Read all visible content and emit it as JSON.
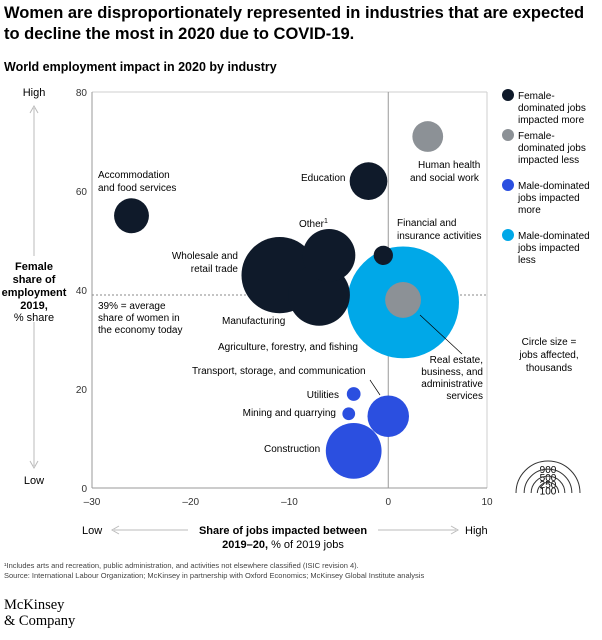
{
  "header": {
    "title": "Women are disproportionately represented in industries that are expected to decline the most in 2020 due to COVID-19.",
    "subtitle": "World employment impact in 2020 by industry"
  },
  "colors": {
    "female_more": "#0f1a2a",
    "female_less": "#8c9196",
    "male_more": "#2b4fe0",
    "male_less": "#00a8e8",
    "axis": "#999999",
    "text": "#000000"
  },
  "axes": {
    "y_low": "High",
    "y_bottom": "Low",
    "y_label_bold_1": "Female",
    "y_label_bold_2": "share of",
    "y_label_bold_3": "employment",
    "y_label_bold_4": "2019,",
    "y_label_unit": "% share",
    "x_low": "Low",
    "x_high": "High",
    "x_label_bold_1": "Share of jobs impacted between",
    "x_label_bold_2": "2019–20,",
    "x_label_unit": "% of 2019 jobs",
    "average_line_1": "39% = average",
    "average_line_2": "share of women in",
    "average_line_3": "the economy today"
  },
  "legend": {
    "items": [
      {
        "line1": "Female-",
        "line2": "dominated jobs",
        "line3": "impacted more",
        "color": "#0f1a2a"
      },
      {
        "line1": "Female-",
        "line2": "dominated jobs",
        "line3": "impacted less",
        "color": "#8c9196"
      },
      {
        "line1": "Male-dominated",
        "line2": "jobs impacted",
        "line3": "more",
        "color": "#2b4fe0"
      },
      {
        "line1": "Male-dominated",
        "line2": "jobs impacted",
        "line3": "less",
        "color": "#00a8e8"
      }
    ],
    "size_title_1": "Circle size =",
    "size_title_2": "jobs affected,",
    "size_title_3": "thousands",
    "size_values": [
      "900",
      "500",
      "250",
      "100"
    ]
  },
  "chart_data": {
    "type": "scatter",
    "xlim": [
      -30,
      10
    ],
    "ylim": [
      0,
      80
    ],
    "x_ticks": [
      "–30",
      "–20",
      "–10",
      "0",
      "10"
    ],
    "x_tick_values": [
      -30,
      -20,
      -10,
      0,
      10
    ],
    "y_ticks": [
      "0",
      "20",
      "40",
      "60",
      "80"
    ],
    "y_tick_values": [
      0,
      20,
      40,
      60,
      80
    ],
    "average_y": 39,
    "points": [
      {
        "label": "Accommodation and food services",
        "x": -26,
        "y": 55,
        "size": 180,
        "category": "female_more"
      },
      {
        "label": "Education",
        "x": -2,
        "y": 62,
        "size": 210,
        "category": "female_more"
      },
      {
        "label": "Human health and social work",
        "x": 4,
        "y": 71,
        "size": 140,
        "category": "female_less"
      },
      {
        "label": "Financial and insurance activities",
        "x": -0.5,
        "y": 47,
        "size": 55,
        "category": "female_more"
      },
      {
        "label": "Wholesale and retail trade",
        "x": -11,
        "y": 43,
        "size": 860,
        "category": "female_more"
      },
      {
        "label": "Other",
        "x": -6,
        "y": 47,
        "size": 410,
        "category": "female_more"
      },
      {
        "label": "Manufacturing",
        "x": -7,
        "y": 39,
        "size": 560,
        "category": "female_more"
      },
      {
        "label": "Agriculture, forestry, and fishing",
        "x": 1.5,
        "y": 37.5,
        "size": 1850,
        "category": "male_less"
      },
      {
        "label": "Real estate, business, and administrative services",
        "x": 1.5,
        "y": 38,
        "size": 190,
        "category": "female_less"
      },
      {
        "label": "Transport, storage, and communication",
        "x": 0,
        "y": 14.5,
        "size": 255,
        "category": "male_more"
      },
      {
        "label": "Utilities",
        "x": -3.5,
        "y": 19,
        "size": 28,
        "category": "male_more"
      },
      {
        "label": "Mining and quarrying",
        "x": -4,
        "y": 15,
        "size": 24,
        "category": "male_more"
      },
      {
        "label": "Construction",
        "x": -3.5,
        "y": 7.5,
        "size": 460,
        "category": "male_more"
      }
    ]
  },
  "labels": {
    "accommodation_1": "Accommodation",
    "accommodation_2": "and food services",
    "education": "Education",
    "health_1": "Human health",
    "health_2": "and social work",
    "other": "Other",
    "other_sup": "1",
    "financial_1": "Financial and",
    "financial_2": "insurance activities",
    "wholesale_1": "Wholesale and",
    "wholesale_2": "retail trade",
    "manufacturing": "Manufacturing",
    "agriculture": "Agriculture, forestry, and fishing",
    "real_estate_1": "Real estate,",
    "real_estate_2": "business, and",
    "real_estate_3": "administrative",
    "real_estate_4": "services",
    "transport": "Transport, storage, and communication",
    "utilities": "Utilities",
    "mining": "Mining and quarrying",
    "construction": "Construction"
  },
  "footnote": {
    "note": "¹Includes arts and recreation, public administration, and activities not elsewhere classified (ISIC revision 4).",
    "source": "Source: International Labour Organization; McKinsey in partnership with Oxford Economics; McKinsey Global Institute analysis"
  },
  "brand": {
    "line1": "McKinsey",
    "line2": "& Company"
  }
}
